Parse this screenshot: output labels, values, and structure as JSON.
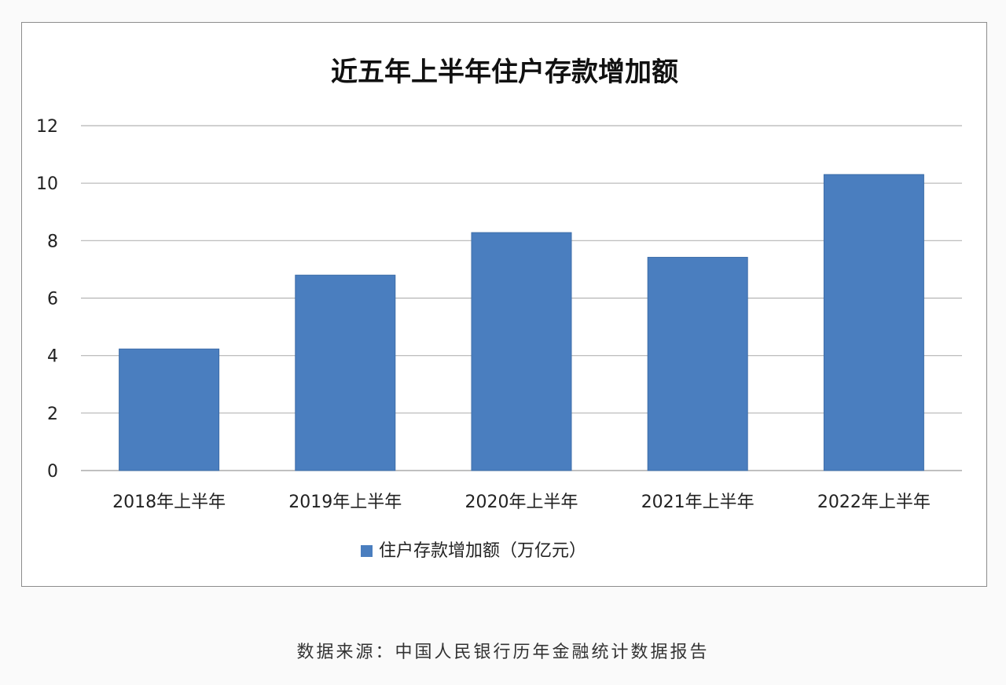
{
  "chart_data": {
    "type": "bar",
    "title": "近五年上半年住户存款增加额",
    "categories": [
      "2018年上半年",
      "2019年上半年",
      "2020年上半年",
      "2021年上半年",
      "2022年上半年"
    ],
    "series": [
      {
        "name": "住户存款增加额（万亿元）",
        "values": [
          4.23,
          6.8,
          8.28,
          7.42,
          10.3
        ],
        "color": "#4a7ebf"
      }
    ],
    "yticks": [
      0,
      2,
      4,
      6,
      8,
      10,
      12
    ],
    "ylim": [
      0,
      12
    ],
    "grid": true,
    "legend": "bottom"
  },
  "source": "数据来源：中国人民银行历年金融统计数据报告"
}
